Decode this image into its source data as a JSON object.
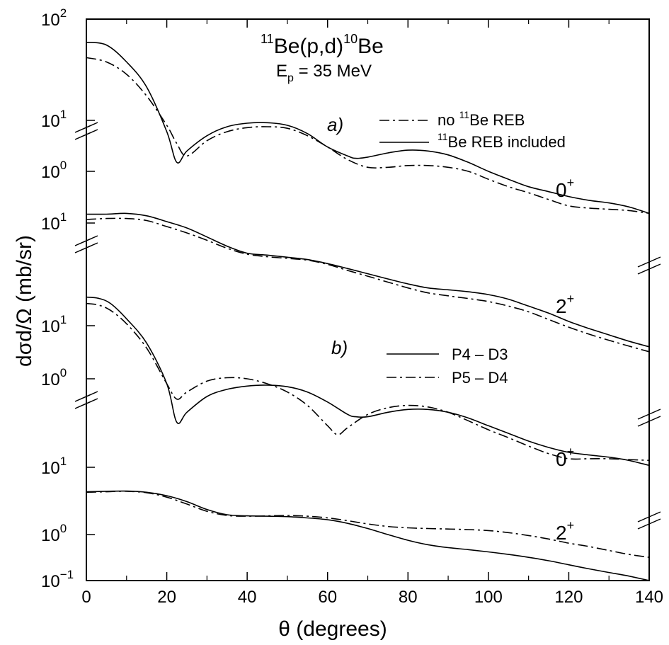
{
  "chart_data": {
    "type": "line",
    "title": {
      "a_sup": "11",
      "core1": "Be(p,d)",
      "b_sup": "10",
      "core2": "Be",
      "energy_E": "E",
      "energy_sub": "p",
      "energy_rest": " = 35 MeV"
    },
    "xlabel": "θ (degrees)",
    "ylabel": "dσd/Ω (mb/sr)",
    "xlim": [
      0,
      140
    ],
    "x_ticks": [
      "0",
      "20",
      "40",
      "60",
      "80",
      "100",
      "120",
      "140"
    ],
    "x_tick_values": [
      0,
      20,
      40,
      60,
      80,
      100,
      120,
      140
    ],
    "y_tick_labels": [
      {
        "base": "10",
        "exp": "2"
      },
      {
        "base": "10",
        "exp": "1"
      },
      {
        "base": "10",
        "exp": "0"
      },
      {
        "base": "10",
        "exp": "1"
      },
      {
        "base": "10",
        "exp": "1"
      },
      {
        "base": "10",
        "exp": "0"
      },
      {
        "base": "10",
        "exp": "1"
      },
      {
        "base": "10",
        "exp": "0"
      },
      {
        "base": "10",
        "exp": "−1"
      }
    ],
    "panel_a": {
      "label": "a)",
      "legend": [
        {
          "style": "dashdot",
          "pre": "no ",
          "sup": "11",
          "post": "Be REB"
        },
        {
          "style": "solid",
          "pre": "",
          "sup": "11",
          "post": "Be REB included"
        }
      ],
      "state_labels": [
        {
          "base": "0",
          "sup": "+"
        },
        {
          "base": "2",
          "sup": "+"
        }
      ],
      "curves": [
        {
          "state": "0+",
          "style": "solid",
          "x": [
            0,
            5,
            10,
            15,
            20,
            22.5,
            25,
            30,
            35,
            40,
            45,
            50,
            55,
            60,
            65,
            67,
            70,
            75,
            80,
            85,
            90,
            95,
            100,
            105,
            110,
            115,
            120,
            125,
            130,
            135,
            140
          ],
          "y": [
            34,
            30,
            14,
            4.5,
            0.6,
            0.15,
            0.25,
            0.5,
            0.75,
            0.88,
            0.9,
            0.8,
            0.55,
            0.3,
            0.2,
            0.18,
            0.19,
            0.23,
            0.26,
            0.25,
            0.21,
            0.15,
            0.1,
            0.07,
            0.05,
            0.04,
            0.032,
            0.027,
            0.024,
            0.02,
            0.015
          ]
        },
        {
          "state": "0+",
          "style": "dashdot",
          "x": [
            0,
            5,
            10,
            15,
            20,
            22.5,
            25,
            30,
            35,
            40,
            45,
            50,
            55,
            60,
            65,
            70,
            75,
            80,
            85,
            90,
            95,
            100,
            105,
            110,
            115,
            120,
            125,
            130,
            135,
            140
          ],
          "y": [
            17,
            14,
            8,
            3,
            0.8,
            0.35,
            0.2,
            0.4,
            0.6,
            0.72,
            0.75,
            0.7,
            0.5,
            0.3,
            0.17,
            0.12,
            0.12,
            0.13,
            0.13,
            0.12,
            0.1,
            0.07,
            0.05,
            0.038,
            0.028,
            0.021,
            0.019,
            0.018,
            0.017,
            0.015
          ]
        },
        {
          "state": "2+",
          "style": "solid",
          "x": [
            0,
            5,
            10,
            15,
            20,
            25,
            30,
            35,
            40,
            45,
            50,
            55,
            60,
            65,
            70,
            75,
            80,
            85,
            90,
            95,
            100,
            105,
            110,
            115,
            120,
            125,
            130,
            135,
            140
          ],
          "y": [
            14,
            14,
            14.5,
            13,
            10,
            7.5,
            5,
            3.3,
            2.4,
            2.2,
            2,
            1.8,
            1.5,
            1.2,
            0.95,
            0.75,
            0.6,
            0.5,
            0.46,
            0.42,
            0.37,
            0.3,
            0.22,
            0.16,
            0.11,
            0.08,
            0.06,
            0.045,
            0.035
          ]
        },
        {
          "state": "2+",
          "style": "dashdot",
          "x": [
            0,
            5,
            10,
            15,
            20,
            25,
            30,
            35,
            40,
            45,
            50,
            55,
            60,
            65,
            70,
            75,
            80,
            85,
            90,
            95,
            100,
            105,
            110,
            115,
            120,
            125,
            130,
            135,
            140
          ],
          "y": [
            11,
            11.5,
            11.5,
            10.5,
            8,
            6,
            4.3,
            3,
            2.3,
            2.05,
            1.9,
            1.75,
            1.45,
            1.1,
            0.85,
            0.65,
            0.5,
            0.4,
            0.35,
            0.31,
            0.27,
            0.22,
            0.17,
            0.12,
            0.085,
            0.062,
            0.047,
            0.036,
            0.028
          ]
        }
      ]
    },
    "panel_b": {
      "label": "b)",
      "legend": [
        {
          "style": "solid",
          "text": "P4 – D3"
        },
        {
          "style": "dashdot",
          "text": "P5 – D4"
        }
      ],
      "state_labels": [
        {
          "base": "0",
          "sup": "+"
        },
        {
          "base": "2",
          "sup": "+"
        }
      ],
      "curves": [
        {
          "state": "0+",
          "style": "solid",
          "x": [
            0,
            3,
            6,
            10,
            15,
            20,
            22.5,
            25,
            30,
            35,
            40,
            45,
            50,
            55,
            60,
            65,
            67,
            70,
            75,
            80,
            85,
            90,
            95,
            100,
            105,
            110,
            115,
            120,
            125,
            130,
            135,
            140
          ],
          "y": [
            40,
            38,
            30,
            15,
            5,
            0.8,
            0.14,
            0.22,
            0.45,
            0.62,
            0.72,
            0.75,
            0.7,
            0.55,
            0.35,
            0.2,
            0.18,
            0.18,
            0.22,
            0.25,
            0.25,
            0.22,
            0.17,
            0.12,
            0.085,
            0.06,
            0.045,
            0.036,
            0.032,
            0.029,
            0.025,
            0.02
          ]
        },
        {
          "state": "0+",
          "style": "dashdot",
          "x": [
            0,
            3,
            6,
            10,
            15,
            20,
            22.5,
            25,
            30,
            35,
            40,
            45,
            50,
            55,
            60,
            62.5,
            65,
            70,
            75,
            80,
            85,
            90,
            95,
            100,
            105,
            110,
            115,
            120,
            125,
            130,
            135,
            140
          ],
          "y": [
            30,
            28,
            22,
            12,
            4,
            0.8,
            0.4,
            0.55,
            0.9,
            1.05,
            1.0,
            0.8,
            0.55,
            0.3,
            0.12,
            0.08,
            0.11,
            0.2,
            0.27,
            0.3,
            0.28,
            0.22,
            0.15,
            0.1,
            0.07,
            0.048,
            0.034,
            0.027,
            0.027,
            0.027,
            0.026,
            0.025
          ]
        },
        {
          "state": "2+",
          "style": "solid",
          "x": [
            0,
            5,
            10,
            15,
            20,
            25,
            30,
            35,
            40,
            45,
            50,
            55,
            60,
            65,
            70,
            75,
            80,
            85,
            90,
            95,
            100,
            105,
            110,
            115,
            120,
            125,
            130,
            135,
            140
          ],
          "y": [
            8.5,
            8.7,
            8.8,
            8.3,
            7,
            5.2,
            3.5,
            2.7,
            2.55,
            2.5,
            2.45,
            2.3,
            2.1,
            1.75,
            1.35,
            1,
            0.75,
            0.6,
            0.52,
            0.47,
            0.42,
            0.37,
            0.32,
            0.27,
            0.22,
            0.18,
            0.15,
            0.125,
            0.1
          ]
        },
        {
          "state": "2+",
          "style": "dashdot",
          "x": [
            0,
            5,
            10,
            15,
            20,
            25,
            30,
            35,
            40,
            45,
            50,
            55,
            60,
            65,
            70,
            75,
            80,
            85,
            90,
            95,
            100,
            105,
            110,
            115,
            120,
            125,
            130,
            135,
            140
          ],
          "y": [
            8.3,
            8.5,
            8.7,
            8.1,
            6.5,
            4.6,
            3.2,
            2.6,
            2.5,
            2.55,
            2.6,
            2.5,
            2.3,
            2,
            1.7,
            1.5,
            1.4,
            1.35,
            1.32,
            1.28,
            1.22,
            1.1,
            0.95,
            0.8,
            0.65,
            0.55,
            0.45,
            0.37,
            0.32
          ]
        }
      ]
    }
  }
}
